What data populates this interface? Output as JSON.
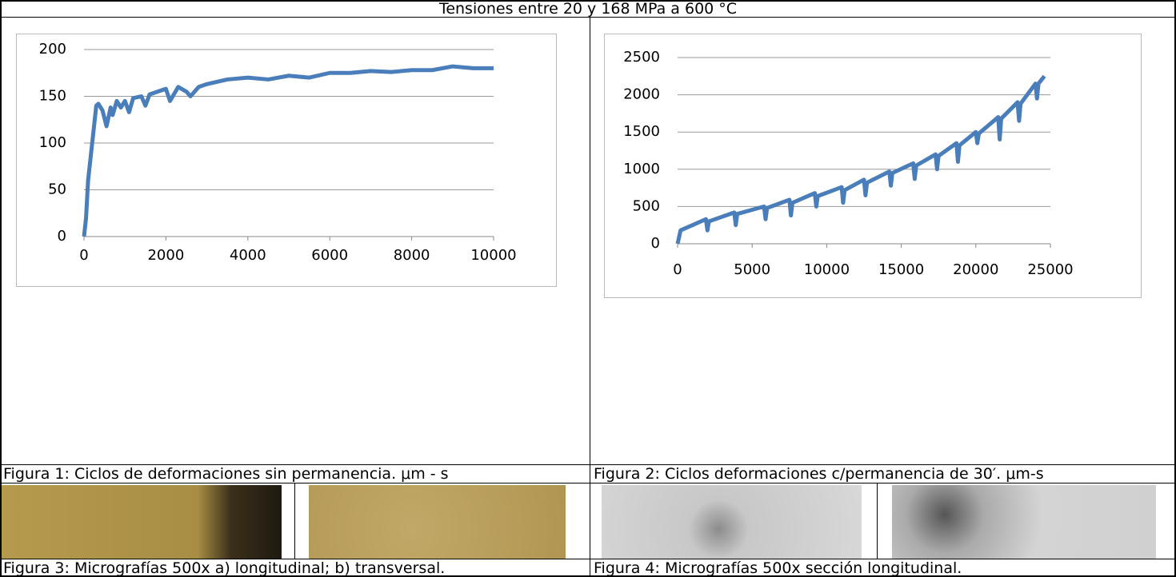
{
  "title": "Tensiones entre 20 y 168 MPa a 600 °C",
  "chart_data": [
    {
      "type": "line",
      "grid": true,
      "xlim": [
        0,
        10000
      ],
      "xticks": [
        0,
        2000,
        4000,
        6000,
        8000,
        10000
      ],
      "ylim": [
        0,
        200
      ],
      "yticks": [
        0,
        50,
        100,
        150,
        200
      ],
      "series": [
        {
          "color": "#4a7ebb",
          "x": [
            0,
            50,
            100,
            200,
            300,
            350,
            450,
            550,
            650,
            700,
            800,
            900,
            1000,
            1100,
            1200,
            1400,
            1500,
            1600,
            1800,
            2000,
            2100,
            2300,
            2500,
            2600,
            2800,
            3000,
            3200,
            3500,
            4000,
            4500,
            5000,
            5500,
            6000,
            6500,
            7000,
            7500,
            8000,
            8500,
            9000,
            9500,
            10000
          ],
          "values": [
            0,
            20,
            60,
            100,
            140,
            142,
            135,
            118,
            138,
            130,
            145,
            138,
            145,
            133,
            148,
            150,
            140,
            152,
            155,
            158,
            145,
            160,
            155,
            150,
            160,
            163,
            165,
            168,
            170,
            168,
            172,
            170,
            175,
            175,
            177,
            176,
            178,
            178,
            182,
            180,
            180
          ]
        }
      ]
    },
    {
      "type": "line",
      "grid": true,
      "xlim": [
        0,
        25000
      ],
      "xticks": [
        0,
        5000,
        10000,
        15000,
        20000,
        25000
      ],
      "ylim": [
        0,
        2500
      ],
      "yticks": [
        0,
        500,
        1000,
        1500,
        2000,
        2500
      ],
      "series": [
        {
          "color": "#4a7ebb",
          "x": [
            0,
            200,
            1000,
            1900,
            2000,
            2100,
            3800,
            3900,
            4000,
            5800,
            5900,
            6000,
            7500,
            7600,
            7700,
            9200,
            9300,
            9400,
            11000,
            11100,
            11200,
            12500,
            12600,
            12700,
            14200,
            14300,
            14400,
            15800,
            15900,
            16000,
            17300,
            17400,
            17500,
            18700,
            18800,
            18900,
            20000,
            20100,
            20200,
            21500,
            21600,
            21700,
            22800,
            22900,
            23000,
            24000,
            24100,
            24200,
            24600
          ],
          "values": [
            0,
            180,
            250,
            330,
            180,
            300,
            420,
            250,
            400,
            500,
            330,
            480,
            590,
            380,
            550,
            680,
            500,
            640,
            760,
            550,
            720,
            860,
            650,
            820,
            970,
            780,
            950,
            1080,
            870,
            1050,
            1200,
            1000,
            1180,
            1350,
            1100,
            1320,
            1500,
            1350,
            1480,
            1700,
            1400,
            1680,
            1900,
            1650,
            1880,
            2150,
            1950,
            2150,
            2250
          ]
        }
      ]
    }
  ],
  "captions": [
    "Figura 1: Ciclos de deformaciones sin permanencia. μm - s",
    "Figura 2: Ciclos deformaciones c/permanencia de 30′. μm-s",
    "Figura 3: Micrografías 500x a) longitudinal; b) transversal.",
    "Figura 4: Micrografías 500x sección longitudinal."
  ]
}
